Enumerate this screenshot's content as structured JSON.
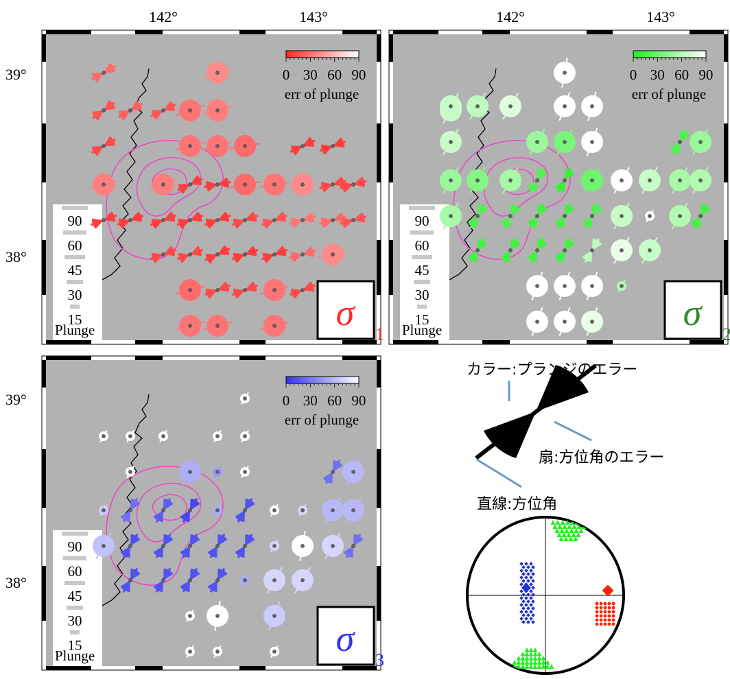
{
  "lon_labels": [
    "142°",
    "143°"
  ],
  "lat_labels": [
    "39°",
    "38°"
  ],
  "panels": [
    {
      "id": "sigma1",
      "symbol": "σ",
      "subscript": "1",
      "color": "#ff2a2a",
      "colorbar_ticks": [
        "0",
        "30",
        "60",
        "90"
      ],
      "colorbar_label": "err of plunge"
    },
    {
      "id": "sigma2",
      "symbol": "σ",
      "subscript": "2",
      "color": "#22ee22",
      "colorbar_ticks": [
        "0",
        "30",
        "60",
        "90"
      ],
      "colorbar_label": "err of plunge"
    },
    {
      "id": "sigma3",
      "symbol": "σ",
      "subscript": "3",
      "color": "#3333ee",
      "colorbar_ticks": [
        "0",
        "30",
        "60",
        "90"
      ],
      "colorbar_label": "err of plunge"
    }
  ],
  "plunge_legend": {
    "values": [
      "90",
      "60",
      "45",
      "30",
      "15"
    ],
    "title": "Plunge"
  },
  "explanation": {
    "color_label": "カラー:プランジのエラー",
    "fan_label": "扇:方位角のエラー",
    "line_label": "直線:方位角"
  },
  "stereonet": {
    "sigma1_color": "#ff2200",
    "sigma2_color": "#22ee22",
    "sigma3_color": "#2233cc"
  }
}
